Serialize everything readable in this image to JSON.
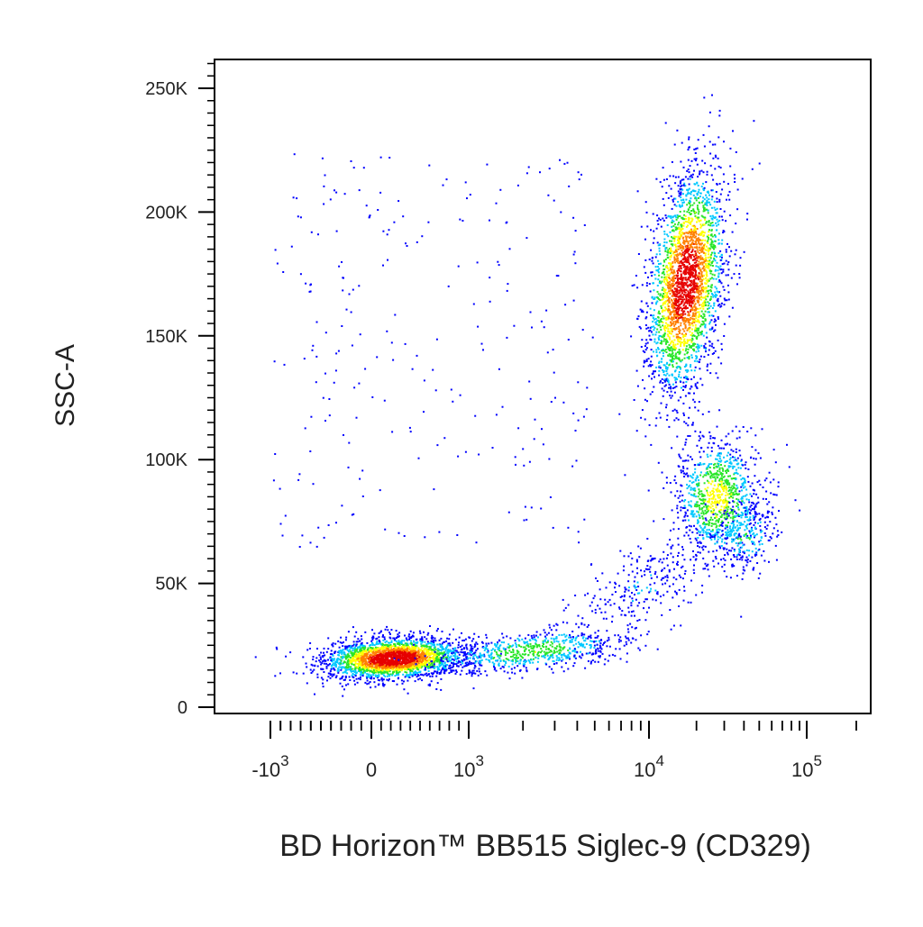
{
  "chart_data": {
    "type": "scatter",
    "subtype": "flow-cytometry-density-dot-plot",
    "xlabel": "BD Horizon™ BB515 Siglec-9 (CD329)",
    "ylabel": "SSC-A",
    "x_scale": "biexponential",
    "x_range": [
      -2500,
      200000
    ],
    "y_scale": "linear",
    "ylim": [
      0,
      262144
    ],
    "y_ticks": [
      {
        "value": 0,
        "label": "0"
      },
      {
        "value": 50000,
        "label": "50K"
      },
      {
        "value": 100000,
        "label": "100K"
      },
      {
        "value": 150000,
        "label": "150K"
      },
      {
        "value": 200000,
        "label": "200K"
      },
      {
        "value": 250000,
        "label": "250K"
      }
    ],
    "x_ticks": [
      {
        "value": -1000,
        "base": "-10",
        "exp": "3"
      },
      {
        "value": 0,
        "base": "0",
        "exp": ""
      },
      {
        "value": 1000,
        "base": "10",
        "exp": "3"
      },
      {
        "value": 10000,
        "base": "10",
        "exp": "4"
      },
      {
        "value": 100000,
        "base": "10",
        "exp": "5"
      }
    ],
    "grid": false,
    "density_colors": [
      "#0000ff",
      "#00c8ff",
      "#28e628",
      "#ffff00",
      "#ff8000",
      "#e60000"
    ],
    "populations": [
      {
        "id": "negative",
        "center": [
          220,
          20000
        ],
        "spread_x": "-900 to 1000",
        "spread_y": "8000 to 38000",
        "peak_density": "high"
      },
      {
        "id": "negative-tail",
        "center": [
          2000,
          23000
        ],
        "spread_x": "1000 to 8000",
        "spread_y": "10000 to 35000",
        "peak_density": "medium"
      },
      {
        "id": "bright-high-ssc",
        "center": [
          17000,
          170000
        ],
        "spread_x": "7000 to 35000",
        "spread_y": "115000 to 232000",
        "peak_density": "high"
      },
      {
        "id": "bright-mid-ssc",
        "center": [
          27000,
          85000
        ],
        "spread_x": "12000 to 90000",
        "spread_y": "40000 to 125000",
        "peak_density": "medium"
      },
      {
        "id": "transition",
        "center": [
          8000,
          45000
        ],
        "spread_x": "3000 to 30000",
        "spread_y": "20000 to 65000",
        "peak_density": "low"
      },
      {
        "id": "sparse-background",
        "center": [
          600,
          150000
        ],
        "spread_x": "-800 to 6000",
        "spread_y": "60000 to 225000",
        "peak_density": "very-low"
      }
    ]
  }
}
